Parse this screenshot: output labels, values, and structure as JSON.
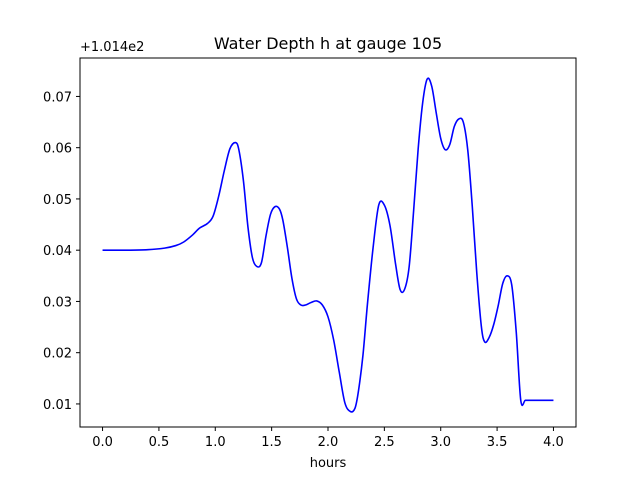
{
  "chart_data": {
    "type": "line",
    "title": "Water Depth h at gauge 105",
    "xlabel": "hours",
    "ylabel": "",
    "y_offset_label": "+1.014e2",
    "xlim": [
      -0.2,
      4.2
    ],
    "ylim": [
      0.0055,
      0.0775
    ],
    "xticks": [
      0.0,
      0.5,
      1.0,
      1.5,
      2.0,
      2.5,
      3.0,
      3.5,
      4.0
    ],
    "xtick_labels": [
      "0.0",
      "0.5",
      "1.0",
      "1.5",
      "2.0",
      "2.5",
      "3.0",
      "3.5",
      "4.0"
    ],
    "yticks": [
      0.01,
      0.02,
      0.03,
      0.04,
      0.05,
      0.06,
      0.07
    ],
    "ytick_labels": [
      "0.01",
      "0.02",
      "0.03",
      "0.04",
      "0.05",
      "0.06",
      "0.07"
    ],
    "grid": false,
    "line_color": "#0000ff",
    "series": [
      {
        "x": [
          0.0,
          0.2,
          0.4,
          0.55,
          0.65,
          0.72,
          0.8,
          0.86,
          0.93,
          0.98,
          1.03,
          1.08,
          1.13,
          1.18,
          1.21,
          1.25,
          1.29,
          1.33,
          1.37,
          1.41,
          1.45,
          1.49,
          1.53,
          1.57,
          1.6,
          1.64,
          1.68,
          1.72,
          1.76,
          1.8,
          1.85,
          1.9,
          1.95,
          2.0,
          2.05,
          2.1,
          2.15,
          2.2,
          2.24,
          2.27,
          2.31,
          2.35,
          2.4,
          2.45,
          2.5,
          2.55,
          2.6,
          2.64,
          2.68,
          2.72,
          2.76,
          2.8,
          2.84,
          2.88,
          2.92,
          2.96,
          3.0,
          3.04,
          3.08,
          3.12,
          3.16,
          3.2,
          3.24,
          3.28,
          3.32,
          3.36,
          3.39,
          3.43,
          3.47,
          3.51,
          3.55,
          3.59,
          3.63,
          3.67,
          3.71,
          3.75,
          3.79,
          3.83,
          3.87,
          3.91,
          3.95,
          4.0
        ],
        "y": [
          0.04,
          0.04,
          0.0401,
          0.0404,
          0.0409,
          0.0416,
          0.043,
          0.0443,
          0.0452,
          0.0466,
          0.0505,
          0.0555,
          0.0598,
          0.061,
          0.0595,
          0.0535,
          0.0445,
          0.0385,
          0.0368,
          0.0376,
          0.0428,
          0.047,
          0.0485,
          0.048,
          0.0458,
          0.0405,
          0.0345,
          0.0305,
          0.0293,
          0.0293,
          0.0298,
          0.0301,
          0.0293,
          0.027,
          0.0225,
          0.0162,
          0.0102,
          0.0085,
          0.0092,
          0.0125,
          0.0195,
          0.0295,
          0.0405,
          0.0488,
          0.0488,
          0.0448,
          0.0372,
          0.0323,
          0.0324,
          0.0368,
          0.0478,
          0.0598,
          0.0688,
          0.0734,
          0.072,
          0.0668,
          0.0618,
          0.0596,
          0.0606,
          0.0641,
          0.0656,
          0.065,
          0.0595,
          0.0485,
          0.0355,
          0.0252,
          0.0221,
          0.023,
          0.0255,
          0.0292,
          0.0335,
          0.035,
          0.0332,
          0.024,
          0.0107,
          0.0107,
          0.0107,
          0.0107,
          0.0107,
          0.0107,
          0.0107,
          0.0107
        ]
      }
    ]
  }
}
